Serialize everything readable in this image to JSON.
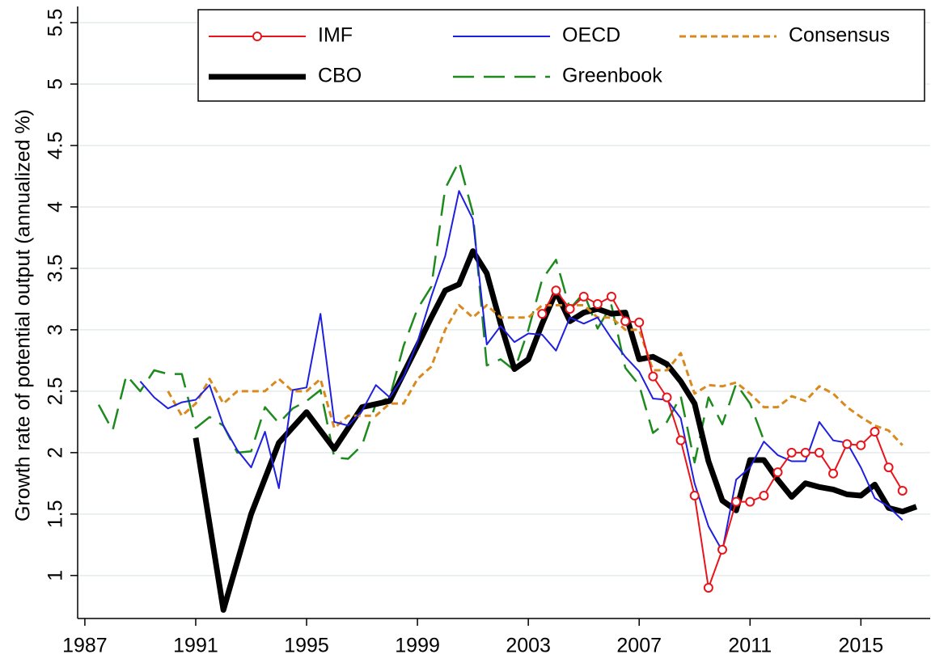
{
  "chart_data": {
    "type": "line",
    "y_label": "Growth rate of potential output (annualized %)",
    "xlim": [
      1986.74,
      2017.5
    ],
    "ylim": [
      0.65,
      5.5
    ],
    "xticks": [
      1987,
      1991,
      1995,
      1999,
      2003,
      2007,
      2011,
      2015
    ],
    "yticks": [
      1,
      1.5,
      2,
      2.5,
      3,
      3.5,
      4,
      4.5,
      5,
      5.5
    ],
    "grid": true,
    "legend_position": "top",
    "series": [
      {
        "name": "IMF",
        "color": "#e8141b",
        "width": 2,
        "dash": "solid",
        "marker": "circle",
        "x": [
          2003.5,
          2004,
          2004.5,
          2005,
          2005.5,
          2006,
          2006.5,
          2007,
          2007.5,
          2008,
          2008.5,
          2009,
          2009.5,
          2010,
          2010.5,
          2011,
          2011.5,
          2012,
          2012.5,
          2013,
          2013.5,
          2014,
          2014.5,
          2015,
          2015.5,
          2016,
          2016.5
        ],
        "values": [
          3.13,
          3.32,
          3.17,
          3.27,
          3.21,
          3.27,
          3.07,
          3.06,
          2.62,
          2.45,
          2.1,
          1.65,
          0.9,
          1.21,
          1.6,
          1.6,
          1.65,
          1.84,
          2.0,
          2.0,
          2.0,
          1.83,
          2.07,
          2.06,
          2.17,
          1.88,
          1.69
        ]
      },
      {
        "name": "OECD",
        "color": "#1f1fe0",
        "width": 2,
        "dash": "solid",
        "marker": "none",
        "x": [
          1989,
          1989.5,
          1990,
          1990.5,
          1991,
          1991.5,
          1992,
          1992.5,
          1993,
          1993.5,
          1994,
          1994.5,
          1995,
          1995.5,
          1996,
          1996.5,
          1997,
          1997.5,
          1998,
          1998.5,
          1999,
          1999.5,
          2000,
          2000.5,
          2001,
          2001.5,
          2002,
          2002.5,
          2003,
          2003.5,
          2004,
          2004.5,
          2005,
          2005.5,
          2006,
          2006.5,
          2007,
          2007.5,
          2008,
          2008.5,
          2009,
          2009.5,
          2010,
          2010.5,
          2011,
          2011.5,
          2012,
          2012.5,
          2013,
          2013.5,
          2014,
          2014.5,
          2015,
          2015.5,
          2016,
          2016.5
        ],
        "values": [
          2.58,
          2.45,
          2.36,
          2.41,
          2.43,
          2.55,
          2.22,
          2.02,
          1.88,
          2.17,
          1.71,
          2.51,
          2.53,
          3.13,
          2.25,
          2.22,
          2.34,
          2.55,
          2.45,
          2.62,
          2.9,
          3.27,
          3.6,
          4.13,
          3.9,
          2.88,
          3.03,
          2.9,
          2.97,
          2.96,
          2.83,
          3.1,
          3.05,
          3.1,
          2.93,
          2.78,
          2.66,
          2.44,
          2.43,
          2.28,
          1.75,
          1.4,
          1.2,
          1.78,
          1.88,
          2.09,
          1.98,
          1.93,
          1.93,
          2.25,
          2.1,
          2.08,
          1.88,
          1.63,
          1.56,
          1.45
        ]
      },
      {
        "name": "Consensus",
        "color": "#d98a1e",
        "width": 3,
        "dash": "dotted",
        "marker": "none",
        "x": [
          1990,
          1990.5,
          1991,
          1991.5,
          1992,
          1992.5,
          1993,
          1993.5,
          1994,
          1994.5,
          1995,
          1995.5,
          1996,
          1996.5,
          1997,
          1997.5,
          1998,
          1998.5,
          1999,
          1999.5,
          2000,
          2000.5,
          2001,
          2001.5,
          2002,
          2002.5,
          2003,
          2003.5,
          2004,
          2004.5,
          2005,
          2005.5,
          2006,
          2006.5,
          2007,
          2007.5,
          2008,
          2008.5,
          2009,
          2009.5,
          2010,
          2010.5,
          2011,
          2011.5,
          2012,
          2012.5,
          2013,
          2013.5,
          2014,
          2014.5,
          2015,
          2015.5,
          2016,
          2016.5
        ],
        "values": [
          2.5,
          2.3,
          2.4,
          2.6,
          2.4,
          2.5,
          2.5,
          2.5,
          2.6,
          2.5,
          2.5,
          2.6,
          2.2,
          2.3,
          2.3,
          2.3,
          2.4,
          2.4,
          2.6,
          2.7,
          3.0,
          3.2,
          3.1,
          3.2,
          3.1,
          3.1,
          3.1,
          3.2,
          3.2,
          3.2,
          3.2,
          3.1,
          3.1,
          3.0,
          3.0,
          2.67,
          2.67,
          2.81,
          2.48,
          2.55,
          2.54,
          2.57,
          2.48,
          2.37,
          2.37,
          2.46,
          2.42,
          2.54,
          2.48,
          2.37,
          2.29,
          2.22,
          2.18,
          2.06
        ]
      },
      {
        "name": "CBO",
        "color": "#000000",
        "width": 7,
        "dash": "solid",
        "marker": "none",
        "x": [
          1991,
          1992,
          1993,
          1994,
          1995,
          1996,
          1997,
          1998,
          1999,
          1999.5,
          2000,
          2000.5,
          2001,
          2001.5,
          2002,
          2002.5,
          2003,
          2003.5,
          2004,
          2004.5,
          2005,
          2005.5,
          2006,
          2006.5,
          2007,
          2007.5,
          2008,
          2008.5,
          2009,
          2009.5,
          2010,
          2010.5,
          2011,
          2011.5,
          2012,
          2012.5,
          2013,
          2013.5,
          2014,
          2014.5,
          2015,
          2015.5,
          2016,
          2016.5,
          2017
        ],
        "values": [
          2.12,
          0.72,
          1.5,
          2.08,
          2.33,
          2.03,
          2.37,
          2.42,
          2.87,
          3.1,
          3.32,
          3.37,
          3.64,
          3.46,
          3.05,
          2.68,
          2.76,
          3.05,
          3.31,
          3.07,
          3.14,
          3.17,
          3.13,
          3.14,
          2.76,
          2.78,
          2.72,
          2.58,
          2.4,
          1.93,
          1.61,
          1.53,
          1.94,
          1.94,
          1.78,
          1.64,
          1.75,
          1.72,
          1.7,
          1.66,
          1.65,
          1.74,
          1.55,
          1.52,
          1.56
        ]
      },
      {
        "name": "Greenbook",
        "color": "#1e8a1e",
        "width": 2.5,
        "dash": "dashed",
        "marker": "none",
        "x": [
          1987.5,
          1988,
          1988.5,
          1989,
          1989.5,
          1990,
          1990.5,
          1991,
          1991.5,
          1992,
          1992.5,
          1993,
          1993.5,
          1994,
          1994.5,
          1995,
          1995.5,
          1996,
          1996.5,
          1997,
          1997.5,
          1998,
          1998.5,
          1999,
          1999.5,
          2000,
          2000.5,
          2001,
          2001.5,
          2002,
          2002.5,
          2003,
          2003.5,
          2004,
          2004.5,
          2005,
          2005.5,
          2006,
          2006.5,
          2007,
          2007.5,
          2008,
          2008.5,
          2009,
          2009.5,
          2010,
          2010.5,
          2011,
          2011.5
        ],
        "values": [
          2.39,
          2.18,
          2.63,
          2.5,
          2.67,
          2.64,
          2.64,
          2.2,
          2.29,
          2.22,
          2.0,
          2.01,
          2.37,
          2.24,
          2.36,
          2.42,
          2.51,
          1.96,
          1.95,
          2.06,
          2.4,
          2.45,
          2.87,
          3.17,
          3.35,
          4.15,
          4.37,
          3.95,
          2.71,
          2.76,
          2.67,
          3.0,
          3.41,
          3.57,
          3.17,
          3.3,
          3.01,
          3.2,
          2.69,
          2.55,
          2.16,
          2.25,
          2.46,
          1.92,
          2.45,
          2.23,
          2.56,
          2.4,
          2.1
        ]
      }
    ]
  }
}
